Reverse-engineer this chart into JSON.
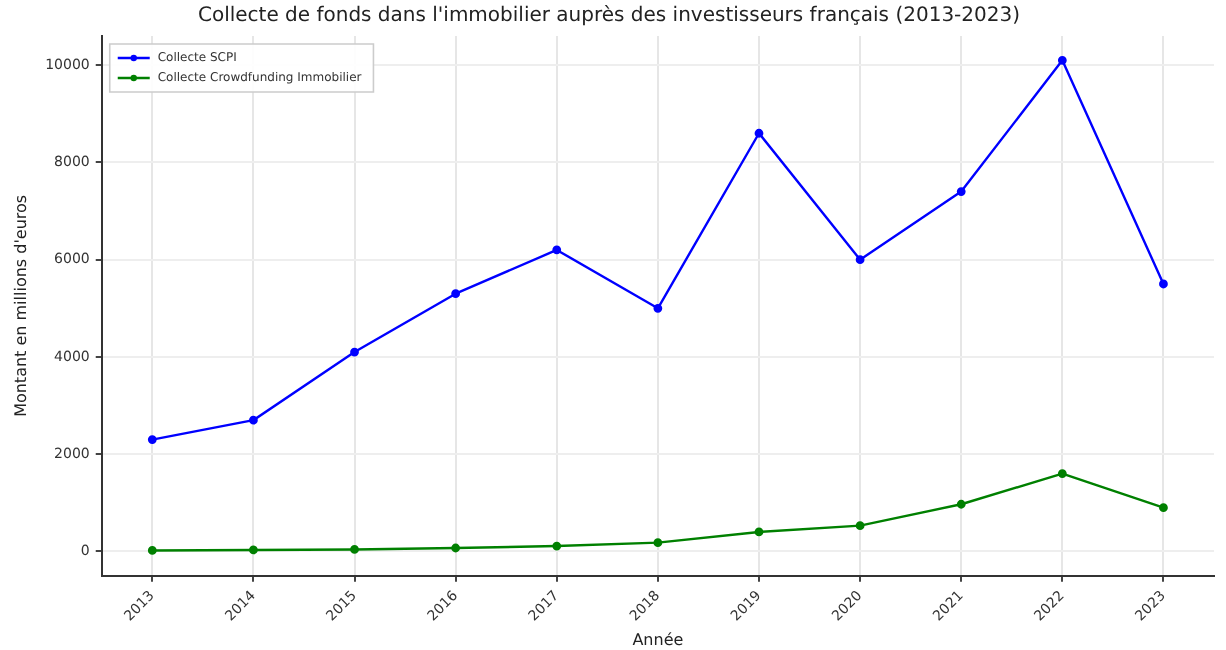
{
  "chart_data": {
    "type": "line",
    "title": "Collecte de fonds dans l'immobilier auprès des investisseurs français (2013-2023)",
    "xlabel": "Année",
    "ylabel": "Montant en millions d'euros",
    "categories": [
      "2013",
      "2014",
      "2015",
      "2016",
      "2017",
      "2018",
      "2019",
      "2020",
      "2021",
      "2022",
      "2023"
    ],
    "series": [
      {
        "name": "Collecte SCPI",
        "color": "#0000ff",
        "values": [
          2300,
          2700,
          4100,
          5300,
          6200,
          5000,
          8600,
          6000,
          7400,
          10100,
          5500
        ]
      },
      {
        "name": "Collecte Crowdfunding Immobilier",
        "color": "#008000",
        "values": [
          20,
          30,
          40,
          70,
          110,
          180,
          400,
          530,
          970,
          1600,
          900
        ]
      }
    ],
    "ylim": [
      -500,
      10600
    ],
    "yticks": [
      0,
      2000,
      4000,
      6000,
      8000,
      10000
    ],
    "grid": true,
    "legend": "top left",
    "marker": "circle",
    "line_style": "solid"
  }
}
